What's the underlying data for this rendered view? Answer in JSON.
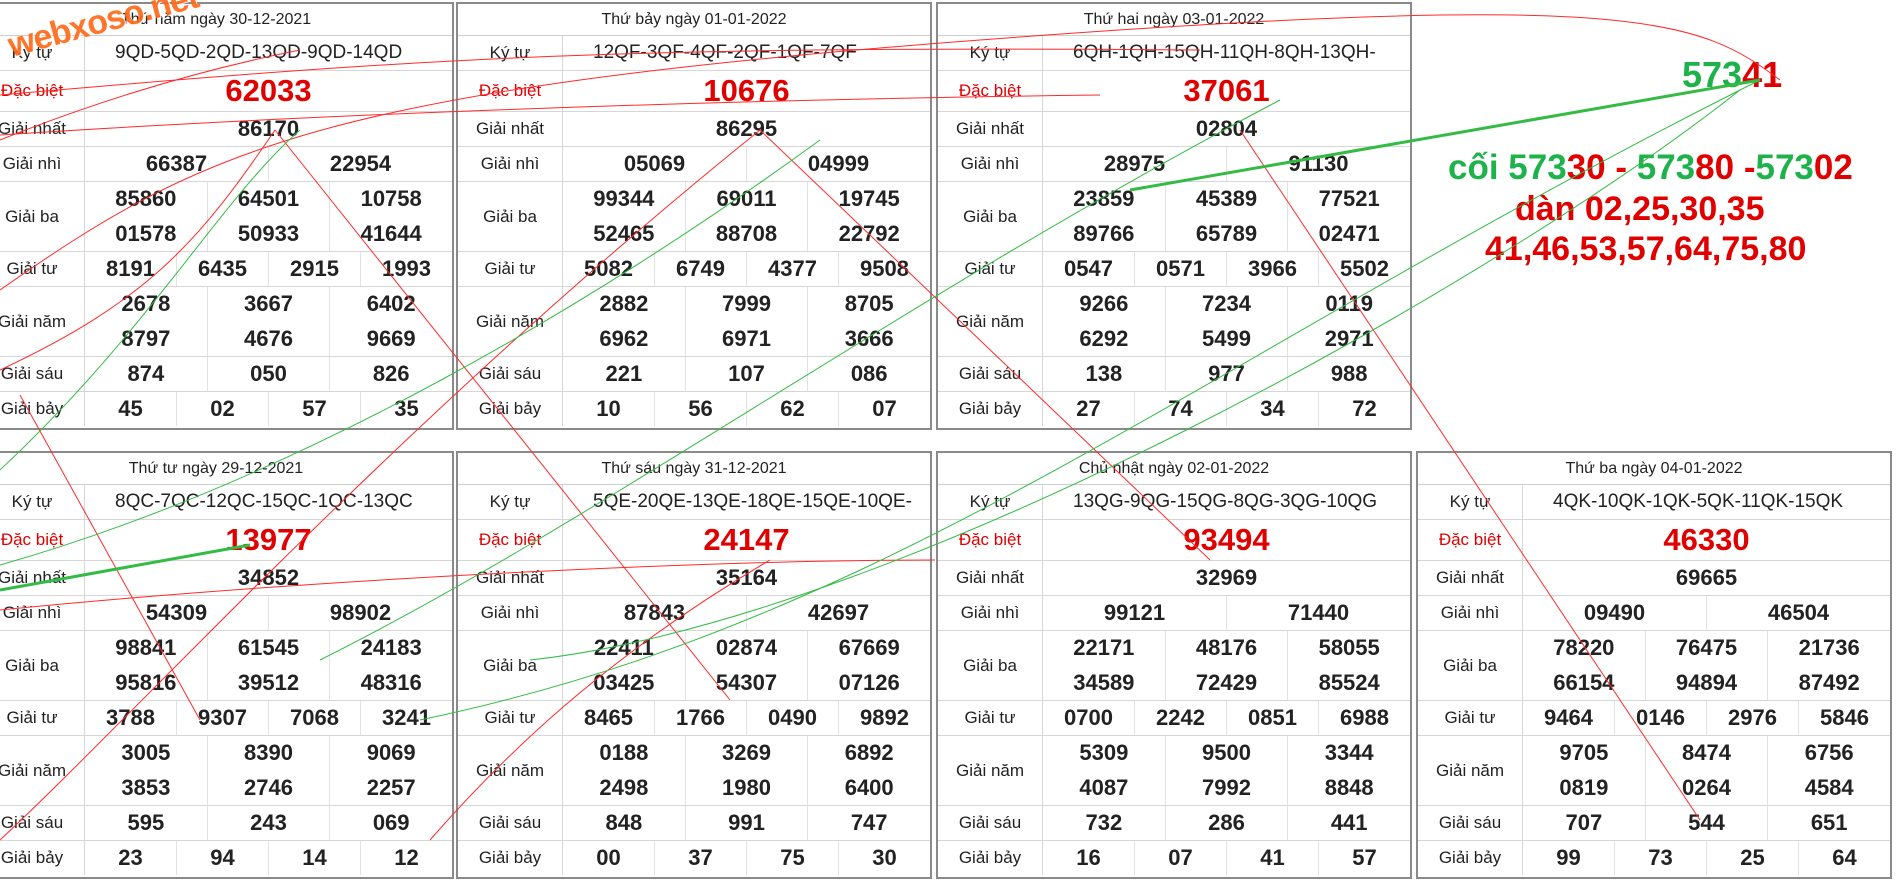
{
  "watermark": "webxoso.net",
  "labels": {
    "code": "Ký tự",
    "special": "Đặc biệt",
    "g1": "Giải nhất",
    "g2": "Giải nhì",
    "g3": "Giải ba",
    "g4": "Giải tư",
    "g5": "Giải năm",
    "g6": "Giải sáu",
    "g7": "Giải bảy"
  },
  "panels": [
    {
      "title": "Thứ năm ngày 30-12-2021",
      "code": "9QD-5QD-2QD-13QD-9QD-14QD",
      "special": "62033",
      "g1": [
        "86170"
      ],
      "g2": [
        "66387",
        "22954"
      ],
      "g3": [
        [
          "85860",
          "64501",
          "10758"
        ],
        [
          "01578",
          "50933",
          "41644"
        ]
      ],
      "g4": [
        "8191",
        "6435",
        "2915",
        "1993"
      ],
      "g5": [
        [
          "2678",
          "3667",
          "6402"
        ],
        [
          "8797",
          "4676",
          "9669"
        ]
      ],
      "g6": [
        "874",
        "050",
        "826"
      ],
      "g7": [
        "45",
        "02",
        "57",
        "35"
      ]
    },
    {
      "title": "Thứ bảy ngày 01-01-2022",
      "code": "12QF-3QF-4QF-2QF-1QF-7QF",
      "special": "10676",
      "g1": [
        "86295"
      ],
      "g2": [
        "05069",
        "04999"
      ],
      "g3": [
        [
          "99344",
          "69011",
          "19745"
        ],
        [
          "52465",
          "88708",
          "22792"
        ]
      ],
      "g4": [
        "5082",
        "6749",
        "4377",
        "9508"
      ],
      "g5": [
        [
          "2882",
          "7999",
          "8705"
        ],
        [
          "6962",
          "6971",
          "3666"
        ]
      ],
      "g6": [
        "221",
        "107",
        "086"
      ],
      "g7": [
        "10",
        "56",
        "62",
        "07"
      ]
    },
    {
      "title": "Thứ hai ngày 03-01-2022",
      "code": "6QH-1QH-15QH-11QH-8QH-13QH-",
      "special": "37061",
      "g1": [
        "02804"
      ],
      "g2": [
        "28975",
        "91130"
      ],
      "g3": [
        [
          "23859",
          "45389",
          "77521"
        ],
        [
          "89766",
          "65789",
          "02471"
        ]
      ],
      "g4": [
        "0547",
        "0571",
        "3966",
        "5502"
      ],
      "g5": [
        [
          "9266",
          "7234",
          "0119"
        ],
        [
          "6292",
          "5499",
          "2971"
        ]
      ],
      "g6": [
        "138",
        "977",
        "988"
      ],
      "g7": [
        "27",
        "74",
        "34",
        "72"
      ]
    },
    {
      "title": "Thứ tư ngày 29-12-2021",
      "code": "8QC-7QC-12QC-15QC-1QC-13QC",
      "special": "13977",
      "g1": [
        "34852"
      ],
      "g2": [
        "54309",
        "98902"
      ],
      "g3": [
        [
          "98841",
          "61545",
          "24183"
        ],
        [
          "95816",
          "39512",
          "48316"
        ]
      ],
      "g4": [
        "3788",
        "9307",
        "7068",
        "3241"
      ],
      "g5": [
        [
          "3005",
          "8390",
          "9069"
        ],
        [
          "3853",
          "2746",
          "2257"
        ]
      ],
      "g6": [
        "595",
        "243",
        "069"
      ],
      "g7": [
        "23",
        "94",
        "14",
        "12"
      ]
    },
    {
      "title": "Thứ sáu ngày 31-12-2021",
      "code": "5QE-20QE-13QE-18QE-15QE-10QE-",
      "special": "24147",
      "g1": [
        "35164"
      ],
      "g2": [
        "87843",
        "42697"
      ],
      "g3": [
        [
          "22411",
          "02874",
          "67669"
        ],
        [
          "03425",
          "54307",
          "07126"
        ]
      ],
      "g4": [
        "8465",
        "1766",
        "0490",
        "9892"
      ],
      "g5": [
        [
          "0188",
          "3269",
          "6892"
        ],
        [
          "2498",
          "1980",
          "6400"
        ]
      ],
      "g6": [
        "848",
        "991",
        "747"
      ],
      "g7": [
        "00",
        "37",
        "75",
        "30"
      ]
    },
    {
      "title": "Chủ nhật ngày 02-01-2022",
      "code": "13QG-9QG-15QG-8QG-3QG-10QG",
      "special": "93494",
      "g1": [
        "32969"
      ],
      "g2": [
        "99121",
        "71440"
      ],
      "g3": [
        [
          "22171",
          "48176",
          "58055"
        ],
        [
          "34589",
          "72429",
          "85524"
        ]
      ],
      "g4": [
        "0700",
        "2242",
        "0851",
        "6988"
      ],
      "g5": [
        [
          "5309",
          "9500",
          "3344"
        ],
        [
          "4087",
          "7992",
          "8848"
        ]
      ],
      "g6": [
        "732",
        "286",
        "441"
      ],
      "g7": [
        "16",
        "07",
        "41",
        "57"
      ]
    },
    {
      "title": "Thứ ba ngày 04-01-2022",
      "code": "4QK-10QK-1QK-5QK-11QK-15QK",
      "special": "46330",
      "g1": [
        "69665"
      ],
      "g2": [
        "09490",
        "46504"
      ],
      "g3": [
        [
          "78220",
          "76475",
          "21736"
        ],
        [
          "66154",
          "94894",
          "87492"
        ]
      ],
      "g4": [
        "9464",
        "0146",
        "2976",
        "5846"
      ],
      "g5": [
        [
          "9705",
          "8474",
          "6756"
        ],
        [
          "0819",
          "0264",
          "4584"
        ]
      ],
      "g6": [
        "707",
        "544",
        "651"
      ],
      "g7": [
        "99",
        "73",
        "25",
        "64"
      ]
    }
  ],
  "notes": {
    "top": {
      "green": "573",
      "red": "41"
    },
    "line1": {
      "prefix": "cối ",
      "parts": [
        {
          "text": "573",
          "color": "green"
        },
        {
          "text": "30",
          "color": "red"
        },
        {
          "text": " - ",
          "color": "red"
        },
        {
          "text": "573",
          "color": "green"
        },
        {
          "text": "80",
          "color": "red"
        },
        {
          "text": " -",
          "color": "red"
        },
        {
          "text": "573",
          "color": "green"
        },
        {
          "text": "02",
          "color": "red"
        }
      ]
    },
    "line2": "dàn 02,25,30,35",
    "line3": "41,46,53,57,64,75,80"
  },
  "colors": {
    "special_red": "#e00000",
    "note_green": "#1db34a",
    "note_red": "#e00000",
    "line_red": "#ff2a2a",
    "line_green": "#33bb44",
    "watermark_orange": "#ff6a1a"
  }
}
